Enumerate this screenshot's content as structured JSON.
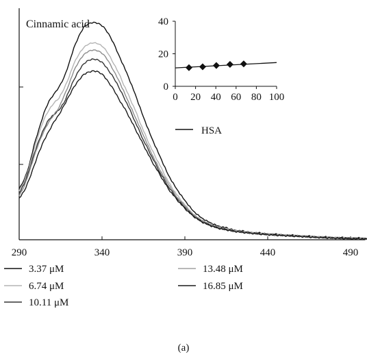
{
  "chart_data": {
    "type": "line",
    "title": "Cinnamic acid",
    "caption": "(a)",
    "xlabel": "",
    "ylabel": "",
    "x_ticks": [
      "290",
      "340",
      "390",
      "440",
      "490"
    ],
    "xlim": [
      290,
      500
    ],
    "ylim": [
      0,
      100
    ],
    "series": [
      {
        "name": "3.37 μM",
        "color": "#111111",
        "points": [
          [
            290,
            22
          ],
          [
            293,
            26
          ],
          [
            296,
            32
          ],
          [
            299,
            41
          ],
          [
            302,
            48
          ],
          [
            305,
            55
          ],
          [
            308,
            60
          ],
          [
            311,
            63
          ],
          [
            314,
            66
          ],
          [
            317,
            70
          ],
          [
            320,
            76
          ],
          [
            323,
            83
          ],
          [
            326,
            88
          ],
          [
            329,
            92
          ],
          [
            332,
            93.5
          ],
          [
            335,
            94
          ],
          [
            338,
            93.5
          ],
          [
            341,
            92
          ],
          [
            344,
            89
          ],
          [
            347,
            85
          ],
          [
            350,
            80
          ],
          [
            355,
            72
          ],
          [
            360,
            63
          ],
          [
            365,
            53
          ],
          [
            370,
            44
          ],
          [
            375,
            36
          ],
          [
            380,
            28
          ],
          [
            385,
            22
          ],
          [
            390,
            17
          ],
          [
            395,
            12.5
          ],
          [
            400,
            9.5
          ],
          [
            405,
            7.5
          ],
          [
            410,
            6
          ],
          [
            420,
            4.2
          ],
          [
            430,
            3.2
          ],
          [
            440,
            2.6
          ],
          [
            450,
            2.1
          ],
          [
            460,
            1.7
          ],
          [
            470,
            1.3
          ],
          [
            480,
            1
          ],
          [
            490,
            0.8
          ],
          [
            500,
            0.6
          ]
        ]
      },
      {
        "name": "6.74 μM",
        "color": "#b4b4b4",
        "points": [
          [
            290,
            21
          ],
          [
            293,
            25
          ],
          [
            296,
            31
          ],
          [
            299,
            39
          ],
          [
            302,
            46
          ],
          [
            305,
            52
          ],
          [
            308,
            56
          ],
          [
            311,
            59
          ],
          [
            314,
            61
          ],
          [
            317,
            65
          ],
          [
            320,
            70
          ],
          [
            323,
            76
          ],
          [
            326,
            80
          ],
          [
            329,
            83
          ],
          [
            332,
            84.5
          ],
          [
            335,
            85
          ],
          [
            338,
            84.5
          ],
          [
            341,
            83
          ],
          [
            344,
            80
          ],
          [
            347,
            76
          ],
          [
            350,
            72
          ],
          [
            355,
            64
          ],
          [
            360,
            56
          ],
          [
            365,
            47
          ],
          [
            370,
            39
          ],
          [
            375,
            32
          ],
          [
            380,
            25
          ],
          [
            385,
            19.5
          ],
          [
            390,
            15
          ],
          [
            395,
            11
          ],
          [
            400,
            8.5
          ],
          [
            405,
            6.8
          ],
          [
            410,
            5.5
          ],
          [
            420,
            3.9
          ],
          [
            430,
            3
          ],
          [
            440,
            2.4
          ],
          [
            450,
            2
          ],
          [
            460,
            1.6
          ],
          [
            470,
            1.2
          ],
          [
            480,
            0.9
          ],
          [
            490,
            0.7
          ],
          [
            500,
            0.5
          ]
        ]
      },
      {
        "name": "10.11 μM",
        "color": "#333333",
        "points": [
          [
            290,
            20
          ],
          [
            293,
            24
          ],
          [
            296,
            30
          ],
          [
            299,
            37
          ],
          [
            302,
            43
          ],
          [
            305,
            48
          ],
          [
            308,
            52
          ],
          [
            311,
            54
          ],
          [
            314,
            56
          ],
          [
            317,
            59
          ],
          [
            320,
            64
          ],
          [
            323,
            69
          ],
          [
            326,
            73
          ],
          [
            329,
            76
          ],
          [
            332,
            77.5
          ],
          [
            335,
            78
          ],
          [
            338,
            77.5
          ],
          [
            341,
            76
          ],
          [
            344,
            73
          ],
          [
            347,
            70
          ],
          [
            350,
            66
          ],
          [
            355,
            59
          ],
          [
            360,
            51
          ],
          [
            365,
            43
          ],
          [
            370,
            36
          ],
          [
            375,
            29
          ],
          [
            380,
            23
          ],
          [
            385,
            18
          ],
          [
            390,
            14
          ],
          [
            395,
            10.5
          ],
          [
            400,
            8
          ],
          [
            405,
            6.4
          ],
          [
            410,
            5.2
          ],
          [
            420,
            3.7
          ],
          [
            430,
            2.9
          ],
          [
            440,
            2.3
          ],
          [
            450,
            1.9
          ],
          [
            460,
            1.5
          ],
          [
            470,
            1.1
          ],
          [
            480,
            0.8
          ],
          [
            490,
            0.6
          ],
          [
            500,
            0.4
          ]
        ]
      },
      {
        "name": "13.48 μM",
        "color": "#8c8c8c",
        "points": [
          [
            290,
            19
          ],
          [
            293,
            23
          ],
          [
            296,
            29
          ],
          [
            299,
            36
          ],
          [
            302,
            42
          ],
          [
            305,
            47
          ],
          [
            308,
            51
          ],
          [
            311,
            54
          ],
          [
            314,
            57
          ],
          [
            317,
            62
          ],
          [
            320,
            67
          ],
          [
            323,
            73
          ],
          [
            326,
            77
          ],
          [
            329,
            80
          ],
          [
            332,
            81.5
          ],
          [
            335,
            82
          ],
          [
            338,
            81.5
          ],
          [
            341,
            80
          ],
          [
            344,
            77
          ],
          [
            347,
            73
          ],
          [
            350,
            69
          ],
          [
            355,
            61
          ],
          [
            360,
            53
          ],
          [
            365,
            45
          ],
          [
            370,
            37
          ],
          [
            375,
            30
          ],
          [
            380,
            24
          ],
          [
            385,
            18.5
          ],
          [
            390,
            14.5
          ],
          [
            395,
            10.8
          ],
          [
            400,
            8.2
          ],
          [
            405,
            6.6
          ],
          [
            410,
            5.3
          ],
          [
            420,
            3.8
          ],
          [
            430,
            2.9
          ],
          [
            440,
            2.3
          ],
          [
            450,
            1.9
          ],
          [
            460,
            1.5
          ],
          [
            470,
            1.1
          ],
          [
            480,
            0.8
          ],
          [
            490,
            0.6
          ],
          [
            500,
            0.4
          ]
        ]
      },
      {
        "name": "16.85 μM",
        "color": "#1a1a1a",
        "points": [
          [
            290,
            18
          ],
          [
            293,
            21
          ],
          [
            296,
            26
          ],
          [
            299,
            32
          ],
          [
            302,
            38
          ],
          [
            305,
            43
          ],
          [
            308,
            47
          ],
          [
            311,
            51
          ],
          [
            314,
            54
          ],
          [
            317,
            58
          ],
          [
            320,
            62
          ],
          [
            323,
            66
          ],
          [
            326,
            69
          ],
          [
            329,
            71.5
          ],
          [
            332,
            72.5
          ],
          [
            335,
            73
          ],
          [
            338,
            72.5
          ],
          [
            341,
            71
          ],
          [
            344,
            68
          ],
          [
            347,
            65
          ],
          [
            350,
            61
          ],
          [
            355,
            55
          ],
          [
            360,
            48
          ],
          [
            365,
            41
          ],
          [
            370,
            34
          ],
          [
            375,
            28
          ],
          [
            380,
            22
          ],
          [
            385,
            17.5
          ],
          [
            390,
            13.5
          ],
          [
            395,
            10.2
          ],
          [
            400,
            7.8
          ],
          [
            405,
            6.2
          ],
          [
            410,
            5
          ],
          [
            420,
            3.6
          ],
          [
            430,
            2.8
          ],
          [
            440,
            2.2
          ],
          [
            450,
            1.8
          ],
          [
            460,
            1.4
          ],
          [
            470,
            1
          ],
          [
            480,
            0.7
          ],
          [
            490,
            0.5
          ],
          [
            500,
            0.3
          ]
        ]
      }
    ],
    "legend": {
      "inline": [
        "HSA"
      ],
      "bottom": [
        {
          "label": "3.37 μM",
          "color": "#111111"
        },
        {
          "label": "13.48 μM",
          "color": "#a0a0a0"
        },
        {
          "label": "6.74 μM",
          "color": "#b4b4b4"
        },
        {
          "label": "16.85 μM",
          "color": "#1a1a1a"
        },
        {
          "label": "10.11 μM",
          "color": "#333333"
        }
      ]
    },
    "inset": {
      "type": "scatter",
      "x_ticks": [
        "0",
        "20",
        "40",
        "60",
        "80",
        "100"
      ],
      "y_ticks": [
        "0",
        "20",
        "40"
      ],
      "xlim": [
        0,
        100
      ],
      "ylim": [
        0,
        40
      ],
      "points": [
        [
          13.5,
          11.5
        ],
        [
          27,
          12
        ],
        [
          40.5,
          12.8
        ],
        [
          54,
          13.5
        ],
        [
          67.5,
          13.8
        ]
      ],
      "fit": [
        [
          0,
          11.3
        ],
        [
          100,
          14.6
        ]
      ]
    }
  }
}
